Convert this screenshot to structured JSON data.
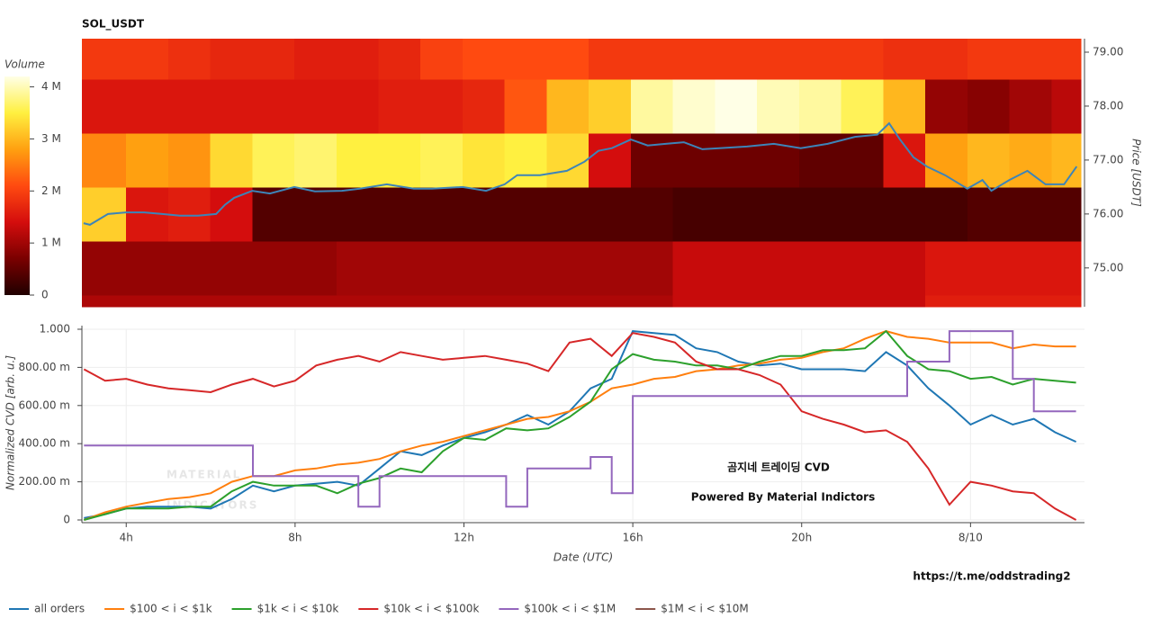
{
  "chart_data": [
    {
      "type": "heatmap",
      "title": "SOL_USDT",
      "x_bins": [
        2.95,
        4,
        5,
        6,
        7,
        8,
        9,
        10,
        11,
        12,
        13,
        14,
        15,
        16,
        17,
        18,
        19,
        20,
        21,
        22,
        23,
        24,
        25,
        26,
        26.7
      ],
      "y_bins": [
        74.28,
        74.5,
        75.5,
        76.5,
        77.5,
        78.5,
        79.25
      ],
      "z": [
        [
          1100000,
          1100000,
          1100000,
          1100000,
          1100000,
          1100000,
          1100000,
          1100000,
          1100000,
          1100000,
          1100000,
          1100000,
          1100000,
          1100000,
          1300000,
          1300000,
          1300000,
          1300000,
          1300000,
          1300000,
          1600000,
          1600000,
          1600000,
          1600000
        ],
        [
          900000,
          900000,
          900000,
          900000,
          900000,
          900000,
          1000000,
          1000000,
          1000000,
          1000000,
          1000000,
          1000000,
          1000000,
          1000000,
          1300000,
          1300000,
          1300000,
          1300000,
          1300000,
          1300000,
          1500000,
          1500000,
          1500000,
          1500000
        ],
        [
          3200000,
          1500000,
          1600000,
          1400000,
          400000,
          400000,
          400000,
          400000,
          400000,
          400000,
          400000,
          400000,
          400000,
          400000,
          300000,
          300000,
          300000,
          300000,
          300000,
          300000,
          300000,
          400000,
          400000,
          400000
        ],
        [
          2600000,
          2800000,
          2700000,
          3300000,
          3600000,
          3700000,
          3500000,
          3500000,
          3600000,
          3400000,
          3500000,
          3300000,
          1400000,
          600000,
          600000,
          600000,
          600000,
          500000,
          500000,
          1500000,
          2800000,
          3000000,
          2900000,
          3000000
        ],
        [
          1500000,
          1500000,
          1500000,
          1500000,
          1500000,
          1500000,
          1500000,
          1600000,
          1600000,
          1700000,
          2200000,
          3000000,
          3200000,
          3900000,
          4100000,
          4200000,
          4000000,
          3900000,
          3600000,
          3000000,
          900000,
          800000,
          1000000,
          1200000
        ],
        [
          1900000,
          1900000,
          1800000,
          1700000,
          1700000,
          1600000,
          1600000,
          1700000,
          2000000,
          2100000,
          2100000,
          2100000,
          1900000,
          1900000,
          1900000,
          1900000,
          1900000,
          1900000,
          1900000,
          1800000,
          1800000,
          1900000,
          1900000,
          1900000
        ]
      ],
      "colorscale": [
        "#200000",
        "#7a0000",
        "#d40d0d",
        "#ff4a10",
        "#ffa010",
        "#fff040",
        "#ffffe6"
      ],
      "colorbar": {
        "title": "Volume",
        "clim": [
          0,
          4200000
        ],
        "ticks": [
          0,
          {
            "value": 1000000,
            "label": "1 M"
          },
          {
            "value": 2000000,
            "label": "2 M"
          },
          {
            "value": 3000000,
            "label": "3 M"
          },
          {
            "value": 4000000,
            "label": "4 M"
          }
        ]
      },
      "series": [
        {
          "color": "#3d84b8",
          "x": [
            2.99,
            3.14,
            3.57,
            4.0,
            4.43,
            4.86,
            5.28,
            5.71,
            6.14,
            6.35,
            6.57,
            7.0,
            7.42,
            8.0,
            8.49,
            9.13,
            9.56,
            10.2,
            10.84,
            11.27,
            12.0,
            12.56,
            13.0,
            13.3,
            13.84,
            14.48,
            14.9,
            15.23,
            15.55,
            16.0,
            16.4,
            16.83,
            17.26,
            17.7,
            18.1,
            18.76,
            19.4,
            20.04,
            20.68,
            21.33,
            21.86,
            22.14,
            22.4,
            22.72,
            23.04,
            23.47,
            24.0,
            24.36,
            24.57,
            25.0,
            25.43,
            25.86,
            26.3,
            26.6
          ],
          "values": [
            75.83,
            75.8,
            76.0,
            76.03,
            76.03,
            76.0,
            75.97,
            75.97,
            76.0,
            76.17,
            76.3,
            76.43,
            76.38,
            76.5,
            76.42,
            76.43,
            76.47,
            76.55,
            76.47,
            76.47,
            76.5,
            76.43,
            76.55,
            76.72,
            76.72,
            76.8,
            76.97,
            77.17,
            77.22,
            77.38,
            77.27,
            77.3,
            77.33,
            77.2,
            77.22,
            77.25,
            77.3,
            77.22,
            77.3,
            77.43,
            77.47,
            77.68,
            77.38,
            77.05,
            76.88,
            76.72,
            76.47,
            76.63,
            76.43,
            76.63,
            76.8,
            76.55,
            76.55,
            76.88
          ]
        }
      ],
      "xlim": [
        2.95,
        26.7
      ],
      "ylim": [
        74.28,
        79.25
      ],
      "yticks": [
        {
          "value": 75,
          "label": "75.00"
        },
        {
          "value": 76,
          "label": "76.00"
        },
        {
          "value": 77,
          "label": "77.00"
        },
        {
          "value": 78,
          "label": "78.00"
        },
        {
          "value": 79,
          "label": "79.00"
        }
      ],
      "y_label": "Price [USDT]"
    },
    {
      "type": "line",
      "x": [
        3,
        3.5,
        4,
        4.5,
        5,
        5.5,
        6,
        6.5,
        7,
        7.5,
        8,
        8.5,
        9,
        9.5,
        10,
        10.5,
        11,
        11.5,
        12,
        12.5,
        13,
        13.5,
        14,
        14.5,
        15,
        15.5,
        16,
        16.5,
        17,
        17.5,
        18,
        18.5,
        19,
        19.5,
        20,
        20.5,
        21,
        21.5,
        22,
        22.5,
        23,
        23.5,
        24,
        24.5,
        25,
        25.5,
        26,
        26.5
      ],
      "series": [
        {
          "name": "all orders",
          "color": "#1f77b4",
          "values": [
            0.01,
            0.03,
            0.06,
            0.07,
            0.07,
            0.07,
            0.06,
            0.11,
            0.18,
            0.15,
            0.18,
            0.19,
            0.2,
            0.18,
            0.27,
            0.36,
            0.34,
            0.39,
            0.43,
            0.46,
            0.5,
            0.55,
            0.5,
            0.57,
            0.69,
            0.74,
            0.99,
            0.98,
            0.97,
            0.9,
            0.88,
            0.83,
            0.81,
            0.82,
            0.79,
            0.79,
            0.79,
            0.78,
            0.88,
            0.81,
            0.69,
            0.6,
            0.5,
            0.55,
            0.5,
            0.53,
            0.46,
            0.41
          ]
        },
        {
          "name": "$100 < i < $1k",
          "color": "#ff7f0e",
          "values": [
            0,
            0.04,
            0.07,
            0.09,
            0.11,
            0.12,
            0.14,
            0.2,
            0.23,
            0.23,
            0.26,
            0.27,
            0.29,
            0.3,
            0.32,
            0.36,
            0.39,
            0.41,
            0.44,
            0.47,
            0.5,
            0.53,
            0.54,
            0.57,
            0.62,
            0.69,
            0.71,
            0.74,
            0.75,
            0.78,
            0.79,
            0.81,
            0.82,
            0.84,
            0.85,
            0.88,
            0.9,
            0.95,
            0.99,
            0.96,
            0.95,
            0.93,
            0.93,
            0.93,
            0.9,
            0.92,
            0.91,
            0.91
          ]
        },
        {
          "name": "$1k < i < $10k",
          "color": "#2ca02c",
          "values": [
            0,
            0.03,
            0.06,
            0.06,
            0.06,
            0.07,
            0.07,
            0.15,
            0.2,
            0.18,
            0.18,
            0.18,
            0.14,
            0.19,
            0.22,
            0.27,
            0.25,
            0.36,
            0.43,
            0.42,
            0.48,
            0.47,
            0.48,
            0.54,
            0.62,
            0.79,
            0.87,
            0.84,
            0.83,
            0.81,
            0.81,
            0.79,
            0.83,
            0.86,
            0.86,
            0.89,
            0.89,
            0.9,
            0.99,
            0.86,
            0.79,
            0.78,
            0.74,
            0.75,
            0.71,
            0.74,
            0.73,
            0.72
          ]
        },
        {
          "name": "$10k < i < $100k",
          "color": "#d62728",
          "values": [
            0.79,
            0.73,
            0.74,
            0.71,
            0.69,
            0.68,
            0.67,
            0.71,
            0.74,
            0.7,
            0.73,
            0.81,
            0.84,
            0.86,
            0.83,
            0.88,
            0.86,
            0.84,
            0.85,
            0.86,
            0.84,
            0.82,
            0.78,
            0.93,
            0.95,
            0.86,
            0.98,
            0.96,
            0.93,
            0.83,
            0.79,
            0.79,
            0.76,
            0.71,
            0.57,
            0.53,
            0.5,
            0.46,
            0.47,
            0.41,
            0.27,
            0.08,
            0.2,
            0.18,
            0.15,
            0.14,
            0.06,
            0
          ]
        },
        {
          "name": "$100k < i < $1M",
          "color": "#9467bd",
          "shape": "hv",
          "values": [
            0.39,
            0.39,
            0.39,
            0.39,
            0.39,
            0.39,
            0.39,
            0.39,
            0.23,
            0.23,
            0.23,
            0.23,
            0.23,
            0.07,
            0.23,
            0.23,
            0.23,
            0.23,
            0.23,
            0.23,
            0.07,
            0.27,
            0.27,
            0.27,
            0.33,
            0.14,
            0.65,
            0.65,
            0.65,
            0.65,
            0.65,
            0.65,
            0.65,
            0.65,
            0.65,
            0.65,
            0.65,
            0.65,
            0.65,
            0.83,
            0.83,
            0.99,
            0.99,
            0.99,
            0.74,
            0.57,
            0.57,
            0.57
          ]
        },
        {
          "name": "$1M < i < $10M",
          "color": "#8c564b",
          "values": [
            null,
            null,
            null,
            null,
            null,
            null,
            null,
            null,
            null,
            null,
            null,
            null,
            null,
            null,
            null,
            null,
            null,
            null,
            null,
            null,
            null,
            null,
            null,
            null,
            null,
            null,
            null,
            null,
            null,
            null,
            null,
            null,
            null,
            null,
            null,
            null,
            null,
            null,
            null,
            null,
            null,
            null,
            null,
            null,
            null,
            null,
            null,
            null
          ]
        }
      ],
      "xlim": [
        2.95,
        26.7
      ],
      "xticks": [
        {
          "value": 4,
          "label": "4h"
        },
        {
          "value": 8,
          "label": "8h"
        },
        {
          "value": 12,
          "label": "12h"
        },
        {
          "value": 16,
          "label": "16h"
        },
        {
          "value": 20,
          "label": "20h"
        },
        {
          "value": 24,
          "label": "8/10"
        }
      ],
      "ylim": [
        0,
        1
      ],
      "yticks": [
        0,
        {
          "value": 0.2,
          "label": "200.00 m"
        },
        {
          "value": 0.4,
          "label": "400.00 m"
        },
        {
          "value": 0.6,
          "label": "600.00 m"
        },
        {
          "value": 0.8,
          "label": "800.00 m"
        },
        {
          "value": 1,
          "label": "1.000"
        }
      ],
      "x_label": "Date (UTC)",
      "y_label": "Normalized CVD [arb. u.]",
      "grid": true,
      "legend": "bottom-left",
      "watermark": [
        "MATERIAL",
        "INDICATORS"
      ],
      "annotations": [
        "곰지네 트레이딩 CVD",
        "Powered By Material Indictors",
        "https://t.me/oddstrading2"
      ]
    }
  ]
}
